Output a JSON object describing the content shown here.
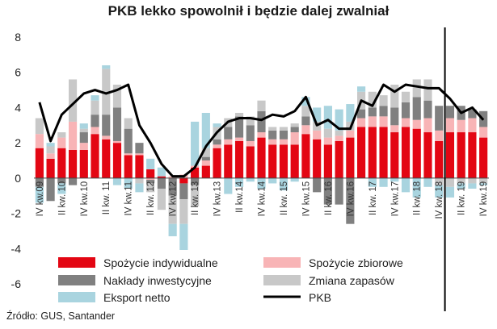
{
  "chart_data": {
    "type": "bar",
    "title": "PKB lekko spowolnił i będzie dalej zwalniał",
    "source": "Źródło: GUS, Santander",
    "ylim": [
      -6,
      8
    ],
    "yticks": [
      -6,
      -4,
      -2,
      0,
      2,
      4,
      6,
      8
    ],
    "forecast_start_index": 37,
    "x_labels": [
      {
        "index": 0,
        "text": "IV kw.09"
      },
      {
        "index": 2,
        "text": "II kw. 10"
      },
      {
        "index": 4,
        "text": "IV kw.10"
      },
      {
        "index": 6,
        "text": "II kw. 11"
      },
      {
        "index": 8,
        "text": "IV kw.11"
      },
      {
        "index": 10,
        "text": "II kw. 12"
      },
      {
        "index": 12,
        "text": "IV kw.12"
      },
      {
        "index": 14,
        "text": "II kw. 13"
      },
      {
        "index": 16,
        "text": "IV kw.13"
      },
      {
        "index": 18,
        "text": "II kw.14"
      },
      {
        "index": 20,
        "text": "IV kw.14"
      },
      {
        "index": 22,
        "text": "II kw. 15"
      },
      {
        "index": 24,
        "text": "IV kw.15"
      },
      {
        "index": 26,
        "text": "II kw. 16"
      },
      {
        "index": 28,
        "text": "IV kw.16"
      },
      {
        "index": 30,
        "text": "II kw. 17"
      },
      {
        "index": 32,
        "text": "IV kw.17"
      },
      {
        "index": 34,
        "text": "II kw. 18"
      },
      {
        "index": 36,
        "text": "IV kw. 18"
      },
      {
        "index": 38,
        "text": "II kw. 19"
      },
      {
        "index": 40,
        "text": "IV kw.19"
      }
    ],
    "series": [
      {
        "name": "Spożycie indywidualne",
        "color": "#e30613",
        "kind": "bar",
        "values": [
          1.7,
          1.1,
          1.7,
          1.6,
          1.6,
          2.5,
          2.2,
          2.0,
          1.3,
          1.3,
          0.5,
          0.1,
          0.0,
          -0.3,
          0.6,
          0.7,
          1.7,
          1.9,
          2.1,
          1.8,
          2.3,
          1.9,
          1.9,
          1.9,
          2.5,
          2.2,
          1.9,
          2.1,
          2.3,
          2.9,
          2.9,
          2.9,
          2.6,
          2.9,
          2.8,
          2.6,
          2.1,
          2.6,
          2.6,
          2.6,
          2.3
        ]
      },
      {
        "name": "Spożycie zbiorowe",
        "color": "#f8b4b6",
        "kind": "bar",
        "values": [
          0.8,
          0.3,
          0.6,
          1.6,
          0.4,
          0.4,
          0.2,
          0.1,
          0.1,
          0.1,
          -0.1,
          0.0,
          0.1,
          0.2,
          0.1,
          0.3,
          0.2,
          0.3,
          0.2,
          0.3,
          0.3,
          0.3,
          0.3,
          0.7,
          0.5,
          0.5,
          0.4,
          0.3,
          0.4,
          0.5,
          0.6,
          0.6,
          0.4,
          0.5,
          0.5,
          0.8,
          0.6,
          0.8,
          0.7,
          0.8,
          0.6
        ]
      },
      {
        "name": "Nakłady inwestycyjne",
        "color": "#808080",
        "kind": "bar",
        "values": [
          -0.5,
          -1.3,
          -0.3,
          -0.4,
          0.6,
          0.7,
          1.2,
          1.9,
          1.4,
          0.6,
          -0.2,
          -0.6,
          -1.0,
          -0.9,
          -0.4,
          0.2,
          0.3,
          0.7,
          1.2,
          0.9,
          1.2,
          0.5,
          0.5,
          0.3,
          0.5,
          -0.8,
          -1.5,
          -1.5,
          -2.6,
          0.5,
          0.5,
          0.6,
          1.0,
          0.9,
          1.3,
          1.0,
          1.4,
          0.7,
          0.8,
          0.5,
          0.9
        ]
      },
      {
        "name": "Zmiana zapasów",
        "color": "#c8c8c8",
        "kind": "bar",
        "values": [
          0.9,
          0.4,
          0.3,
          2.4,
          0.2,
          0.8,
          2.6,
          1.3,
          0.6,
          -0.3,
          -0.5,
          -1.2,
          -1.6,
          -1.4,
          -1.2,
          0.5,
          0.7,
          0.5,
          0.2,
          0.5,
          0.6,
          0.2,
          0.2,
          0.2,
          0.6,
          0.5,
          0.5,
          0.3,
          0.5,
          1.0,
          0.9,
          0.6,
          1.3,
          0.6,
          1.0,
          1.2,
          -0.4,
          -0.5,
          -0.3,
          -0.3,
          -0.3
        ]
      },
      {
        "name": "Eksport netto",
        "color": "#a9d4df",
        "kind": "bar",
        "values": [
          -0.9,
          0.2,
          -0.6,
          0.0,
          0.3,
          0.3,
          0.2,
          -0.4,
          -0.6,
          -0.5,
          0.6,
          0.5,
          -0.7,
          -2.0,
          2.5,
          2.0,
          0.2,
          -0.9,
          -0.5,
          -0.2,
          -0.6,
          -0.3,
          -0.7,
          -0.2,
          0.5,
          0.8,
          1.3,
          1.2,
          1.0,
          0.3,
          -0.5,
          -0.5,
          -0.2,
          -0.8,
          -1.1,
          -0.5,
          -0.7,
          -0.6,
          -0.3,
          -0.3,
          -0.1
        ]
      },
      {
        "name": "PKB",
        "color": "#000000",
        "kind": "line",
        "values": [
          4.3,
          2.1,
          3.6,
          4.2,
          4.8,
          5.0,
          4.8,
          5.0,
          5.3,
          3.0,
          2.0,
          0.8,
          0.1,
          0.1,
          0.6,
          1.8,
          2.6,
          3.2,
          3.4,
          3.4,
          3.3,
          3.6,
          3.5,
          3.8,
          4.6,
          3.0,
          3.3,
          2.8,
          2.8,
          4.4,
          4.1,
          5.3,
          4.9,
          5.3,
          5.2,
          5.1,
          5.1,
          4.5,
          3.7,
          4.0,
          3.3
        ]
      }
    ]
  }
}
